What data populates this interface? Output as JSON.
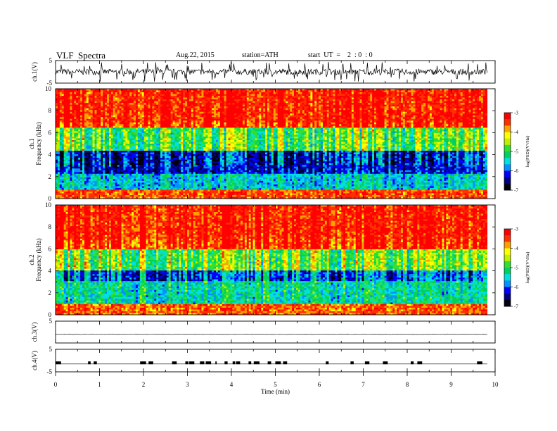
{
  "header": {
    "title": "VLF  Spectra",
    "date": "Aug.22, 2015",
    "station": "station=ATH",
    "start": "start  UT  =    2  : 0  : 0"
  },
  "colors": {
    "spectrum": [
      "#000010",
      "#000080",
      "#0000ff",
      "#0090ff",
      "#00e0e0",
      "#00d060",
      "#30e030",
      "#c0f000",
      "#ffff00",
      "#ffa000",
      "#ff3000",
      "#ff0000"
    ],
    "axis": "#000000",
    "trace": "#000000"
  },
  "chart_data": [
    {
      "type": "line",
      "ylabel": "ch.1(V)",
      "ylim": [
        -5,
        5
      ],
      "ytick_labels": [
        "5",
        "-5"
      ],
      "description_values": {
        "baseline": 0,
        "spike_range": [
          -4.5,
          3.5
        ]
      }
    },
    {
      "type": "heatmap",
      "channel_label": "ch.1",
      "ylabel": "Frequency  (kHz)",
      "ylim": [
        0,
        10
      ],
      "ytick_labels": [
        "0",
        "2",
        "4",
        "6",
        "8",
        "10"
      ],
      "colorbar": {
        "label": "log(PSD)(V²/Hz)",
        "range": [
          -7,
          -3
        ],
        "tick_labels": [
          "-3",
          "-4",
          "-5",
          "-6",
          "-7"
        ]
      },
      "bands": [
        {
          "freq": [
            0,
            0.7
          ],
          "level": -3.5
        },
        {
          "freq": [
            0.7,
            2.2
          ],
          "level": -5.5
        },
        {
          "freq": [
            2.2,
            4.3
          ],
          "level": -6.2
        },
        {
          "freq": [
            4.3,
            6.5
          ],
          "level": -4.8
        },
        {
          "freq": [
            6.5,
            10
          ],
          "level": -3.3
        }
      ]
    },
    {
      "type": "heatmap",
      "channel_label": "ch.2",
      "ylabel": "Frequency  (kHz)",
      "ylim": [
        0,
        10
      ],
      "ytick_labels": [
        "0",
        "2",
        "4",
        "6",
        "8",
        "10"
      ],
      "colorbar": {
        "label": "log(PSD)(V²/Hz)",
        "range": [
          -7,
          -3
        ],
        "tick_labels": [
          "-3",
          "-4",
          "-5",
          "-6",
          "-7"
        ]
      },
      "bands": [
        {
          "freq": [
            0,
            1.0
          ],
          "level": -3.6
        },
        {
          "freq": [
            1.0,
            3.0
          ],
          "level": -5.3
        },
        {
          "freq": [
            3.0,
            4.0
          ],
          "level": -5.9
        },
        {
          "freq": [
            4.0,
            6.0
          ],
          "level": -4.7
        },
        {
          "freq": [
            6.0,
            10
          ],
          "level": -3.3
        }
      ]
    },
    {
      "type": "line",
      "ylabel": "ch.3(V)",
      "ylim": [
        -5,
        5
      ],
      "ytick_labels": [
        "5"
      ],
      "description_values": {
        "baseline": -1
      }
    },
    {
      "type": "line",
      "ylabel": "ch.4(V)",
      "ylim": [
        -5,
        5
      ],
      "ytick_labels": [
        "5",
        "-5"
      ],
      "description_values": {
        "baseline": -1.5,
        "pulse_level": -1
      }
    }
  ],
  "xaxis": {
    "label": "Time  (min)",
    "range": [
      0,
      10
    ],
    "tick_labels": [
      "0",
      "1",
      "2",
      "3",
      "4",
      "5",
      "6",
      "7",
      "8",
      "9",
      "10"
    ]
  }
}
